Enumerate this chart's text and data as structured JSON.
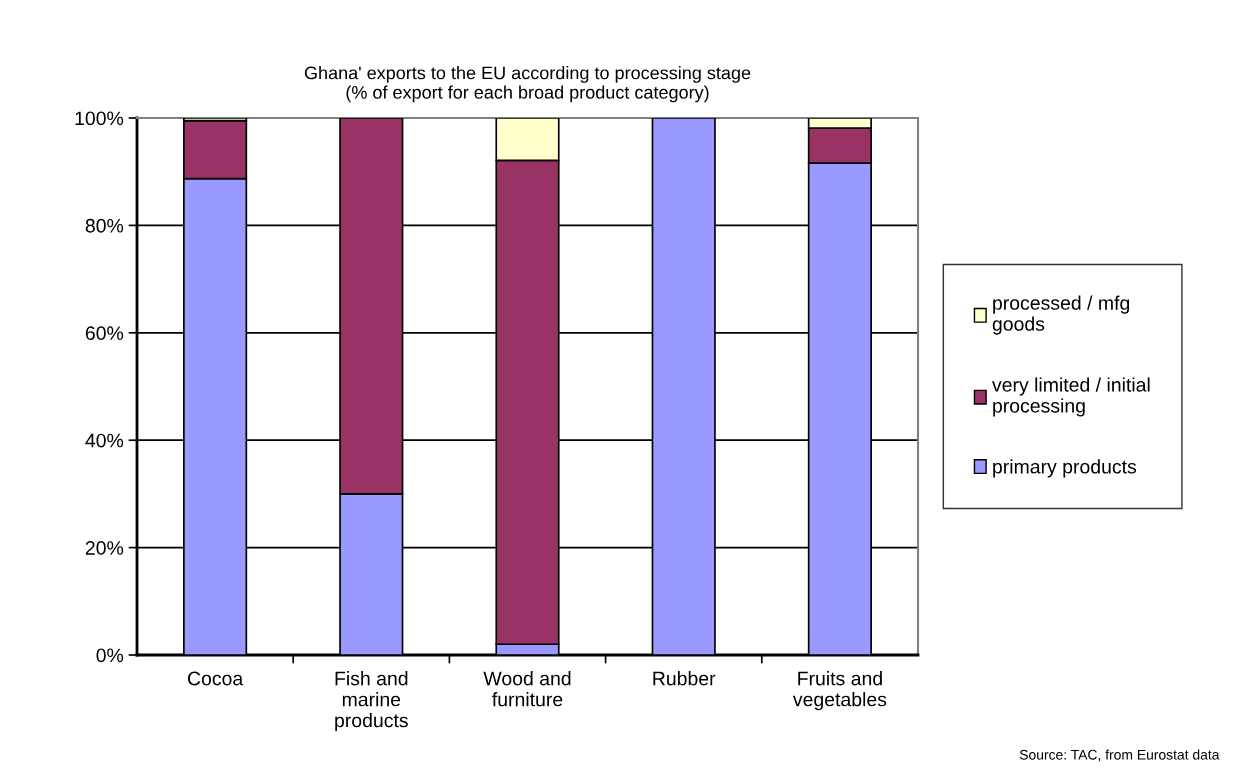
{
  "chart_data": {
    "type": "bar",
    "stacked": true,
    "title": "Ghana' exports to the EU according to processing stage\n(% of export for each broad product category)",
    "categories": [
      "Cocoa",
      "Fish and\nmarine\nproducts",
      "Wood and\nfurniture",
      "Rubber",
      "Fruits and\nvegetables"
    ],
    "series": [
      {
        "name": "primary products",
        "color": "#9999ff",
        "values": [
          88.7,
          30,
          2,
          100,
          91.6
        ]
      },
      {
        "name": "very limited / initial\nprocessing",
        "color": "#993366",
        "values": [
          10.8,
          70,
          90.1,
          0,
          6.5
        ]
      },
      {
        "name": "processed / mfg\ngoods",
        "color": "#ffffcc",
        "values": [
          0.5,
          0,
          7.9,
          0,
          1.9
        ]
      }
    ],
    "ylim": [
      0,
      100
    ],
    "yticks": [
      {
        "value": 0,
        "label": "0%"
      },
      {
        "value": 20,
        "label": "20%"
      },
      {
        "value": 40,
        "label": "40%"
      },
      {
        "value": 60,
        "label": "60%"
      },
      {
        "value": 80,
        "label": "80%"
      },
      {
        "value": 100,
        "label": "100%"
      }
    ],
    "grid": "y",
    "legend": "right",
    "annotations": [
      "Source: TAC, from Eurostat data"
    ]
  }
}
